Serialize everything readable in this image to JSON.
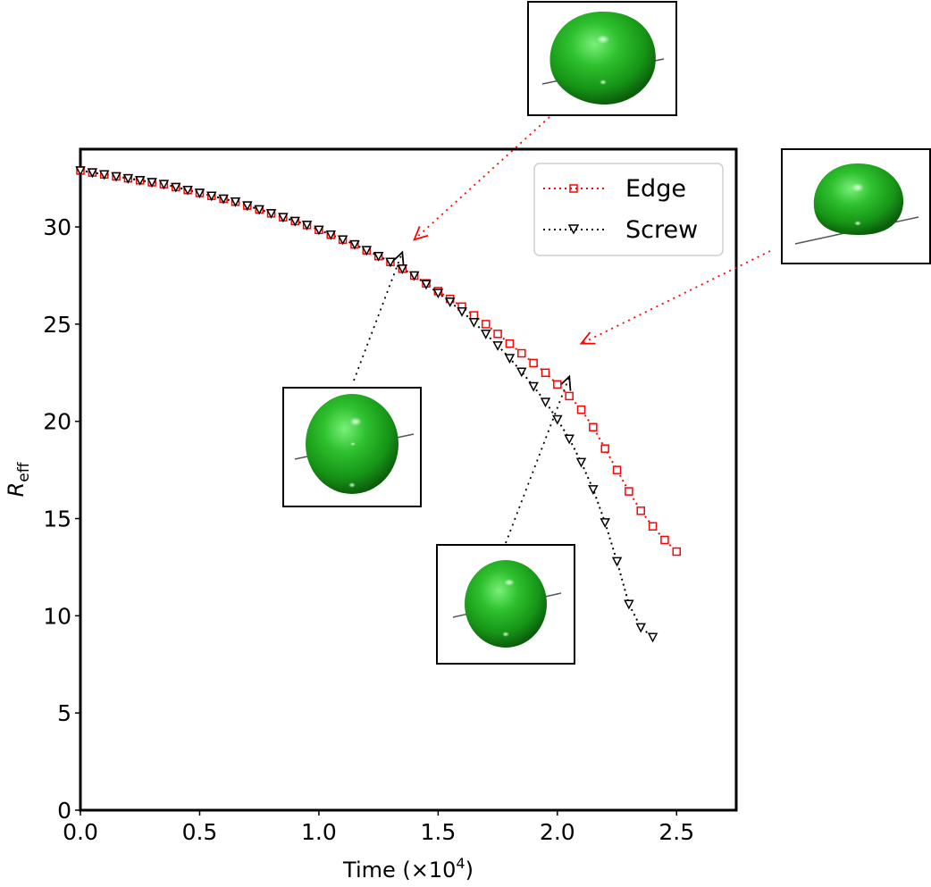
{
  "chart_data": {
    "type": "scatter",
    "xlabel": "Time (×10",
    "xlabel_sup": "4",
    "xlabel_close": ")",
    "ylabel_main": "R",
    "ylabel_sub": "eff",
    "xlim": [
      0,
      2.75
    ],
    "ylim": [
      0,
      34
    ],
    "xticks": [
      0.0,
      0.5,
      1.0,
      1.5,
      2.0,
      2.5
    ],
    "xtick_labels": [
      "0.0",
      "0.5",
      "1.0",
      "1.5",
      "2.0",
      "2.5"
    ],
    "yticks": [
      0,
      5,
      10,
      15,
      20,
      25,
      30
    ],
    "ytick_labels": [
      "0",
      "5",
      "10",
      "15",
      "20",
      "25",
      "30"
    ],
    "legend_position": "top-right",
    "grid": false,
    "series": [
      {
        "name": "Edge",
        "color": "#ff0000",
        "marker": "square",
        "x": [
          0.0,
          0.05,
          0.1,
          0.15,
          0.2,
          0.25,
          0.3,
          0.35,
          0.4,
          0.45,
          0.5,
          0.55,
          0.6,
          0.65,
          0.7,
          0.75,
          0.8,
          0.85,
          0.9,
          0.95,
          1.0,
          1.05,
          1.1,
          1.15,
          1.2,
          1.25,
          1.3,
          1.35,
          1.4,
          1.45,
          1.5,
          1.55,
          1.6,
          1.65,
          1.7,
          1.75,
          1.8,
          1.85,
          1.9,
          1.95,
          2.0,
          2.05,
          2.1,
          2.15,
          2.2,
          2.25,
          2.3,
          2.35,
          2.4,
          2.45,
          2.5
        ],
        "y": [
          32.9,
          32.8,
          32.7,
          32.6,
          32.5,
          32.4,
          32.3,
          32.2,
          32.05,
          31.9,
          31.75,
          31.6,
          31.45,
          31.3,
          31.1,
          30.9,
          30.7,
          30.5,
          30.3,
          30.1,
          29.85,
          29.6,
          29.35,
          29.1,
          28.8,
          28.5,
          28.2,
          27.85,
          27.5,
          27.1,
          26.7,
          26.3,
          25.9,
          25.45,
          25.0,
          24.5,
          24.0,
          23.5,
          23.0,
          22.5,
          21.9,
          21.3,
          20.6,
          19.7,
          18.6,
          17.5,
          16.4,
          15.4,
          14.6,
          13.9,
          13.3
        ]
      },
      {
        "name": "Screw",
        "color": "#000000",
        "marker": "triangle-down",
        "x": [
          0.0,
          0.05,
          0.1,
          0.15,
          0.2,
          0.25,
          0.3,
          0.35,
          0.4,
          0.45,
          0.5,
          0.55,
          0.6,
          0.65,
          0.7,
          0.75,
          0.8,
          0.85,
          0.9,
          0.95,
          1.0,
          1.05,
          1.1,
          1.15,
          1.2,
          1.25,
          1.3,
          1.35,
          1.4,
          1.45,
          1.5,
          1.55,
          1.6,
          1.65,
          1.7,
          1.75,
          1.8,
          1.85,
          1.9,
          1.95,
          2.0,
          2.05,
          2.1,
          2.15,
          2.2,
          2.25,
          2.3,
          2.35,
          2.4
        ],
        "y": [
          32.9,
          32.8,
          32.7,
          32.6,
          32.5,
          32.4,
          32.3,
          32.2,
          32.05,
          31.9,
          31.75,
          31.6,
          31.45,
          31.3,
          31.1,
          30.9,
          30.7,
          30.5,
          30.3,
          30.1,
          29.85,
          29.6,
          29.35,
          29.1,
          28.8,
          28.5,
          28.2,
          27.85,
          27.5,
          27.05,
          26.6,
          26.15,
          25.65,
          25.1,
          24.5,
          23.9,
          23.25,
          22.55,
          21.8,
          21.0,
          20.1,
          19.1,
          17.9,
          16.5,
          14.8,
          12.8,
          10.6,
          9.4,
          8.9
        ]
      }
    ],
    "annotations": [
      {
        "series": "Edge",
        "point_x": 1.4,
        "point_y": 29.35,
        "arrow_color": "#ff0000",
        "icon": "green-sphere-edge-early-icon"
      },
      {
        "series": "Edge",
        "point_x": 2.1,
        "point_y": 24.0,
        "arrow_color": "#ff0000",
        "icon": "green-sphere-edge-late-icon"
      },
      {
        "series": "Screw",
        "point_x": 1.35,
        "point_y": 28.7,
        "arrow_color": "#000000",
        "icon": "green-sphere-screw-early-icon"
      },
      {
        "series": "Screw",
        "point_x": 2.05,
        "point_y": 22.3,
        "arrow_color": "#000000",
        "icon": "green-sphere-screw-late-icon"
      }
    ]
  }
}
